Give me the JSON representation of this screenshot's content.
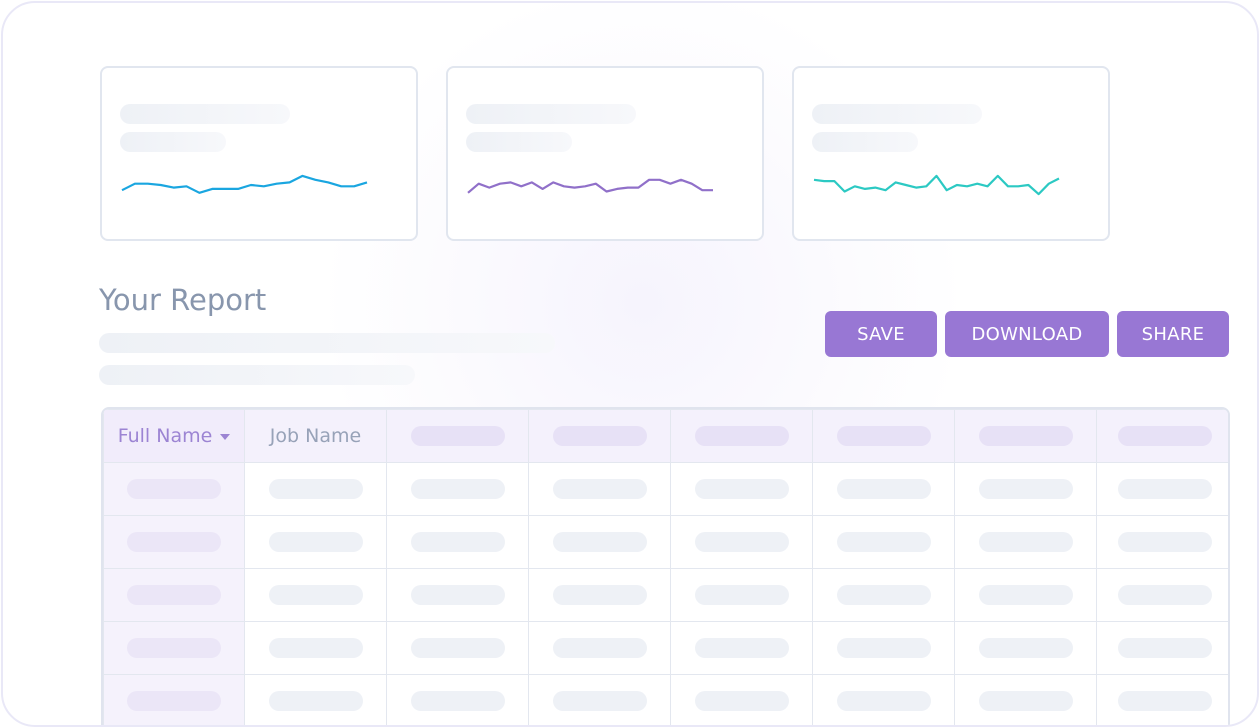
{
  "report": {
    "title": "Your Report",
    "actions": {
      "save": "SAVE",
      "download": "DOWNLOAD",
      "share": "SHARE"
    }
  },
  "sparkline_cards": [
    {
      "color": "#1aa6e0",
      "values": [
        0.3,
        0.55,
        0.55,
        0.5,
        0.4,
        0.45,
        0.2,
        0.35,
        0.35,
        0.35,
        0.5,
        0.45,
        0.55,
        0.6,
        0.85,
        0.7,
        0.6,
        0.45,
        0.45,
        0.6
      ]
    },
    {
      "color": "#9070c9",
      "values": [
        0.2,
        0.55,
        0.4,
        0.55,
        0.6,
        0.45,
        0.6,
        0.35,
        0.6,
        0.45,
        0.4,
        0.45,
        0.55,
        0.25,
        0.35,
        0.4,
        0.4,
        0.7,
        0.7,
        0.55,
        0.7,
        0.55,
        0.3,
        0.3
      ]
    },
    {
      "color": "#2cc9c3",
      "values": [
        0.7,
        0.65,
        0.65,
        0.25,
        0.45,
        0.35,
        0.4,
        0.3,
        0.6,
        0.5,
        0.4,
        0.45,
        0.85,
        0.3,
        0.5,
        0.45,
        0.55,
        0.45,
        0.85,
        0.45,
        0.45,
        0.5,
        0.15,
        0.55,
        0.75
      ]
    }
  ],
  "table": {
    "headers": [
      "Full Name",
      "Job Name"
    ]
  }
}
